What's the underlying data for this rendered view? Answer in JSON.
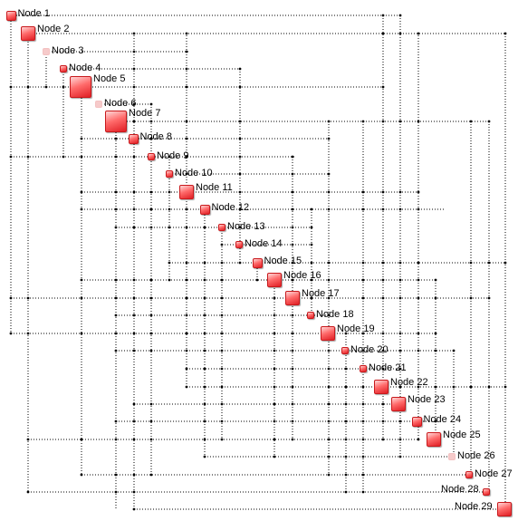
{
  "diagram": {
    "nodes": [
      {
        "label": "Node 1",
        "size": "small"
      },
      {
        "label": "Node 2",
        "size": "medium"
      },
      {
        "label": "Node 3",
        "size": "tiny",
        "faint": true
      },
      {
        "label": "Node 4",
        "size": "tiny"
      },
      {
        "label": "Node 5",
        "size": "large"
      },
      {
        "label": "Node 6",
        "size": "tiny",
        "faint": true
      },
      {
        "label": "Node 7",
        "size": "large"
      },
      {
        "label": "Node 8",
        "size": "small"
      },
      {
        "label": "Node 9",
        "size": "tiny"
      },
      {
        "label": "Node 10",
        "size": "tiny"
      },
      {
        "label": "Node 11",
        "size": "medium"
      },
      {
        "label": "Node 12",
        "size": "small"
      },
      {
        "label": "Node 13",
        "size": "tiny"
      },
      {
        "label": "Node 14",
        "size": "tiny"
      },
      {
        "label": "Node 15",
        "size": "small"
      },
      {
        "label": "Node 16",
        "size": "medium"
      },
      {
        "label": "Node 17",
        "size": "medium"
      },
      {
        "label": "Node 18",
        "size": "tiny"
      },
      {
        "label": "Node 19",
        "size": "medium"
      },
      {
        "label": "Node 20",
        "size": "tiny"
      },
      {
        "label": "Node 21",
        "size": "tiny"
      },
      {
        "label": "Node 22",
        "size": "medium"
      },
      {
        "label": "Node 23",
        "size": "medium"
      },
      {
        "label": "Node 24",
        "size": "small"
      },
      {
        "label": "Node 25",
        "size": "medium"
      },
      {
        "label": "Node 26",
        "size": "tiny",
        "faint": true
      },
      {
        "label": "Node 27",
        "size": "tiny"
      },
      {
        "label": "Node 28",
        "size": "tiny"
      },
      {
        "label": "Node 29",
        "size": "medium"
      }
    ],
    "edge_style": "dotted orthogonal",
    "colors": {
      "node_fill": "#ef2b2d",
      "node_border": "#c8191c",
      "faint_node_fill": "#f6caca",
      "edge": "#000000",
      "background": "#ffffff"
    }
  }
}
